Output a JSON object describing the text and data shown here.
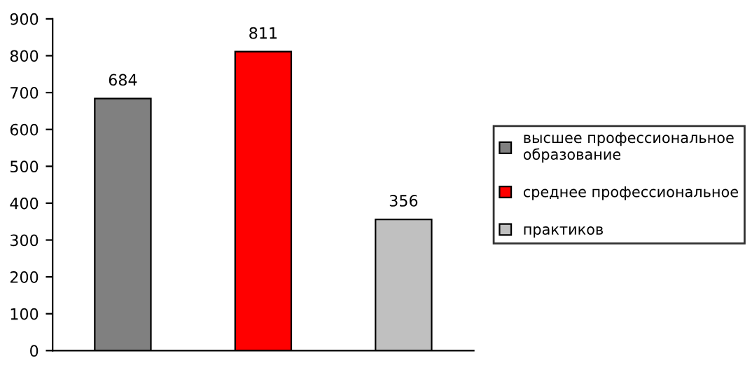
{
  "chart_data": {
    "type": "bar",
    "categories": [
      null,
      null,
      null
    ],
    "series": [
      {
        "name": "высшее профессиональное\nобразование",
        "color": "#808080",
        "values": [
          684,
          null,
          null
        ]
      },
      {
        "name": "среднее профессиональное",
        "color": "#ff0000",
        "values": [
          null,
          811,
          null
        ]
      },
      {
        "name": "практиков",
        "color": "#c0c0c0",
        "values": [
          null,
          null,
          356
        ]
      }
    ],
    "ylim": [
      0,
      900
    ],
    "yticks": [
      0,
      100,
      200,
      300,
      400,
      500,
      600,
      700,
      800,
      900
    ],
    "data_labels": true,
    "legend": "right",
    "grid": false
  }
}
